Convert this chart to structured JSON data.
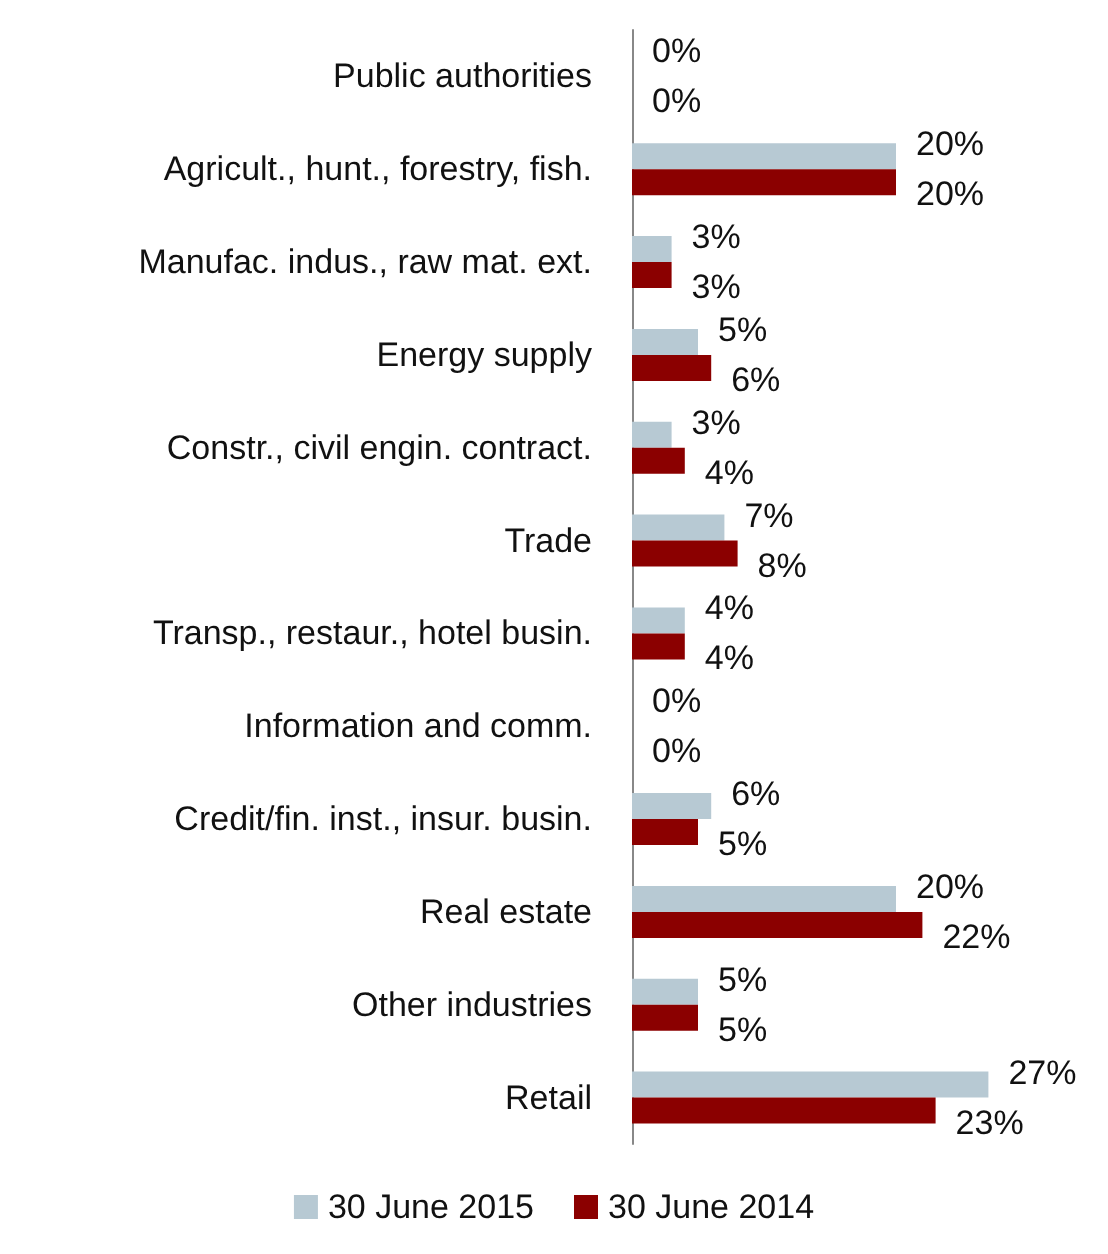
{
  "chart_data": {
    "type": "bar",
    "orientation": "horizontal",
    "legend": "bottom",
    "categories": [
      "Public authorities",
      "Agricult., hunt., forestry, fish.",
      "Manufac. indus., raw mat. ext.",
      "Energy supply",
      "Constr., civil engin. contract.",
      "Trade",
      "Transp., restaur., hotel busin.",
      "Information and comm.",
      "Credit/fin. inst., insur. busin.",
      "Real estate",
      "Other industries",
      "Retail"
    ],
    "series": [
      {
        "name": "30 June 2015",
        "color": "#b7c9d3",
        "values": [
          0,
          20,
          3,
          5,
          3,
          7,
          4,
          0,
          6,
          20,
          5,
          27
        ],
        "value_labels": [
          "0%",
          "20%",
          "3%",
          "5%",
          "3%",
          "7%",
          "4%",
          "0%",
          "6%",
          "20%",
          "5%",
          "27%"
        ]
      },
      {
        "name": "30 June 2014",
        "color": "#8b0000",
        "values": [
          0,
          20,
          3,
          6,
          4,
          8,
          4,
          0,
          5,
          22,
          5,
          23
        ],
        "value_labels": [
          "0%",
          "20%",
          "3%",
          "6%",
          "4%",
          "8%",
          "4%",
          "0%",
          "5%",
          "22%",
          "5%",
          "23%"
        ]
      }
    ]
  }
}
